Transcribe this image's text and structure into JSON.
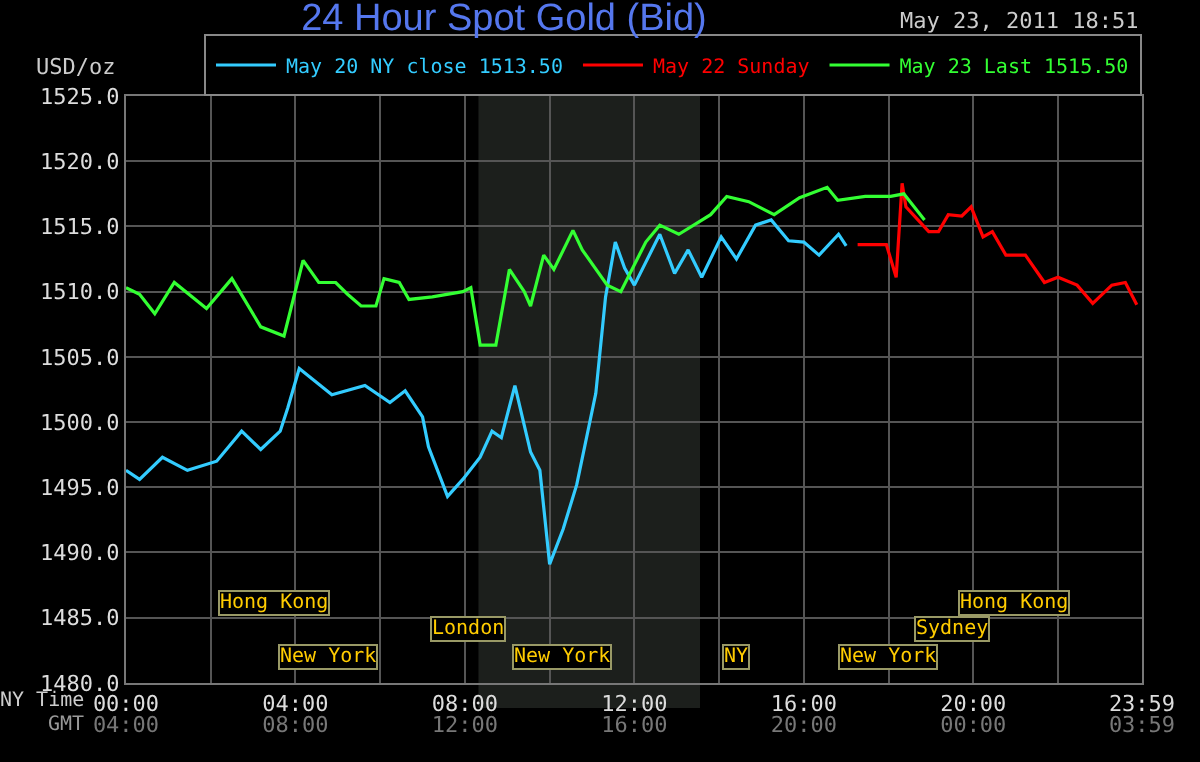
{
  "chart_data": {
    "type": "line",
    "title": "24 Hour Spot Gold (Bid)",
    "subtitle": "May 23, 2011 18:51",
    "ylabel": "USD/oz",
    "xlim": [
      0,
      23.983
    ],
    "ylim": [
      1480,
      1525
    ],
    "xlabel": "NY Time",
    "x2label": "GMT",
    "xticks": [
      {
        "value": 0,
        "label": "00:00"
      },
      {
        "value": 2,
        "label": null
      },
      {
        "value": 4,
        "label": "04:00"
      },
      {
        "value": 6,
        "label": null
      },
      {
        "value": 8,
        "label": "08:00"
      },
      {
        "value": 10,
        "label": null
      },
      {
        "value": 12,
        "label": "12:00"
      },
      {
        "value": 14,
        "label": null
      },
      {
        "value": 16,
        "label": "16:00"
      },
      {
        "value": 18,
        "label": null
      },
      {
        "value": 20,
        "label": "20:00"
      },
      {
        "value": 22,
        "label": null
      },
      {
        "value": 23.983,
        "label": "23:59"
      }
    ],
    "x2lim": [
      "--05-23T04:00",
      "--05-24T03:59"
    ],
    "x2ticks": [
      {
        "value": "--05-23T04:00",
        "label": "04:00"
      },
      {
        "value": "--05-23T08:00",
        "label": "08:00"
      },
      {
        "value": "--05-23T12:00",
        "label": "12:00"
      },
      {
        "value": "--05-23T16:00",
        "label": "16:00"
      },
      {
        "value": "--05-23T20:00",
        "label": "20:00"
      },
      {
        "value": "--05-24T00:00",
        "label": "00:00"
      },
      {
        "value": "--05-24T03:59",
        "label": "03:59"
      }
    ],
    "yticks": [
      {
        "value": 1480,
        "label": "1480.0"
      },
      {
        "value": 1485,
        "label": "1485.0"
      },
      {
        "value": 1490,
        "label": "1490.0"
      },
      {
        "value": 1495,
        "label": "1495.0"
      },
      {
        "value": 1500,
        "label": "1500.0"
      },
      {
        "value": 1505,
        "label": "1505.0"
      },
      {
        "value": 1510,
        "label": "1510.0"
      },
      {
        "value": 1515,
        "label": "1515.0"
      },
      {
        "value": 1520,
        "label": "1520.0"
      },
      {
        "value": 1525,
        "label": "1525.0"
      }
    ],
    "grid": true,
    "legend": "top right",
    "marker": "none",
    "line_style": "solid",
    "bands": [
      {
        "axis": "x",
        "from": 8.32,
        "to": 13.55,
        "color": "#1c1f1c"
      }
    ],
    "annotations": [
      "Hong Kong",
      "London",
      "New York",
      "New York",
      "NY",
      "Hong Kong",
      "Sydney",
      "New York"
    ],
    "series": [
      {
        "name": "May 20 NY close 1513.50",
        "color": "#33ccff",
        "x": [
          0,
          0.32,
          0.86,
          1.45,
          2.14,
          2.73,
          3.18,
          3.64,
          3.82,
          4.09,
          4.86,
          5.64,
          6.23,
          6.59,
          7.0,
          7.14,
          7.59,
          7.95,
          8.36,
          8.64,
          8.86,
          9.18,
          9.55,
          9.77,
          10.0,
          10.32,
          10.64,
          11.09,
          11.32,
          11.55,
          11.77,
          12.0,
          12.6,
          12.95,
          13.27,
          13.59,
          14.05,
          14.41,
          14.86,
          15.23,
          15.64,
          16.0,
          16.36,
          16.82,
          17.0
        ],
        "values": [
          1496.3,
          1495.6,
          1497.3,
          1496.3,
          1497.0,
          1499.3,
          1497.9,
          1499.3,
          1501.1,
          1504.1,
          1502.1,
          1502.8,
          1501.5,
          1502.4,
          1500.4,
          1498.1,
          1494.3,
          1495.6,
          1497.3,
          1499.3,
          1498.8,
          1502.8,
          1497.7,
          1496.3,
          1489.1,
          1491.8,
          1495.2,
          1502.2,
          1509.6,
          1513.8,
          1511.8,
          1510.5,
          1514.4,
          1511.4,
          1513.2,
          1511.1,
          1514.2,
          1512.5,
          1515.1,
          1515.5,
          1513.9,
          1513.8,
          1512.8,
          1514.4,
          1513.5
        ]
      },
      {
        "name": "May 22 Sunday",
        "color": "#ff0000",
        "x": [
          17.27,
          17.95,
          18.18,
          18.32,
          18.41,
          18.95,
          19.18,
          19.41,
          19.73,
          19.95,
          20.23,
          20.45,
          20.77,
          21.23,
          21.68,
          22.0,
          22.45,
          22.82,
          23.27,
          23.59,
          23.86
        ],
        "values": [
          1513.6,
          1513.6,
          1511.1,
          1518.3,
          1516.5,
          1514.6,
          1514.6,
          1515.9,
          1515.8,
          1516.5,
          1514.2,
          1514.6,
          1512.8,
          1512.8,
          1510.7,
          1511.1,
          1510.5,
          1509.1,
          1510.5,
          1510.7,
          1509.0
        ]
      },
      {
        "name": "May 23 Last 1515.50",
        "color": "#33ff33",
        "x": [
          0,
          0.32,
          0.68,
          1.14,
          1.9,
          2.5,
          3.18,
          3.73,
          4.18,
          4.55,
          4.95,
          5.23,
          5.55,
          5.9,
          6.09,
          6.45,
          6.68,
          7.23,
          7.95,
          8.14,
          8.36,
          8.73,
          9.05,
          9.4,
          9.55,
          9.86,
          10.1,
          10.55,
          10.77,
          11.36,
          11.68,
          12.27,
          12.6,
          13.05,
          13.8,
          14.18,
          14.7,
          15.3,
          15.9,
          16.55,
          16.8,
          17.45,
          18.05,
          18.36,
          18.85
        ],
        "values": [
          1510.3,
          1509.8,
          1508.3,
          1510.7,
          1508.7,
          1511.0,
          1507.3,
          1506.6,
          1512.4,
          1510.7,
          1510.7,
          1509.8,
          1508.9,
          1508.9,
          1511.0,
          1510.7,
          1509.4,
          1509.6,
          1510.0,
          1510.3,
          1505.9,
          1505.9,
          1511.7,
          1510.0,
          1508.9,
          1512.8,
          1511.7,
          1514.7,
          1513.2,
          1510.5,
          1510.0,
          1513.8,
          1515.1,
          1514.4,
          1515.9,
          1517.3,
          1516.9,
          1515.9,
          1517.2,
          1518.0,
          1517.0,
          1517.3,
          1517.3,
          1517.5,
          1515.5
        ]
      }
    ]
  }
}
